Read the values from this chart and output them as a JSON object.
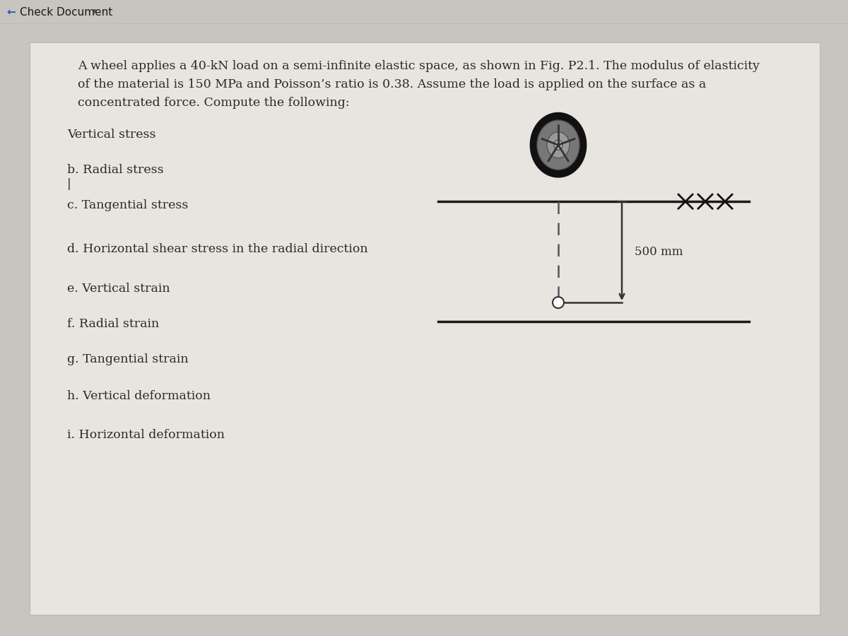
{
  "bg_color": "#c8c4bf",
  "paper_color": "#e8e5e0",
  "header_text": "Check Document",
  "header_text_color": "#1a1a1a",
  "header_bg": "#c0bcb7",
  "header_arrow_color": "#1a5fb5",
  "text_color": "#2a2a2a",
  "paragraph_line1": "A wheel applies a 40-kN load on a semi-infinite elastic space, as shown in Fig. P2.1. The modulus of elasticity",
  "paragraph_line2": "of the material is 150 MPa and Poisson’s ratio is 0.38. Assume the load is applied on the surface as a",
  "paragraph_line3": "concentrated force. Compute the following:",
  "items": [
    "Vertical stress",
    "b. Radial stress",
    "c. Tangential stress",
    "d. Horizontal shear stress in the radial direction",
    "e. Vertical strain",
    "f. Radial strain",
    "g. Tangential strain",
    "h. Vertical deformation",
    "i. Horizontal deformation"
  ],
  "diagram_label": "500 mm",
  "font_size_body": 12.5,
  "font_size_header": 11.0,
  "diagram_line_color": "#1a1a1a",
  "diagram_dash_color": "#555555"
}
